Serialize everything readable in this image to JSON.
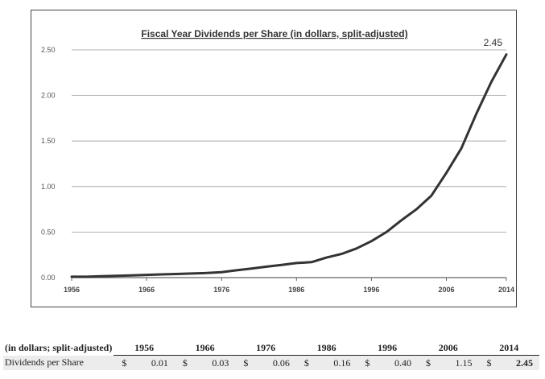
{
  "chart_data": {
    "type": "line",
    "title": "Fiscal Year Dividends per Share (in dollars, split-adjusted)",
    "xlabel": "",
    "ylabel": "",
    "xlim": [
      1956,
      2014
    ],
    "ylim": [
      0,
      2.5
    ],
    "x_ticks": [
      "1956",
      "1966",
      "1976",
      "1986",
      "1996",
      "2006",
      "2014"
    ],
    "y_ticks": [
      "0.00",
      "0.50",
      "1.00",
      "1.50",
      "2.00",
      "2.50"
    ],
    "grid": true,
    "line_color": "#333333",
    "annotation": "2.45",
    "series": [
      {
        "x": [
          1956,
          1958,
          1960,
          1962,
          1964,
          1966,
          1968,
          1970,
          1972,
          1974,
          1976,
          1978,
          1980,
          1982,
          1984,
          1986,
          1988,
          1990,
          1992,
          1994,
          1996,
          1998,
          2000,
          2002,
          2004,
          2006,
          2008,
          2010,
          2012,
          2014
        ],
        "values": [
          0.01,
          0.01,
          0.015,
          0.02,
          0.025,
          0.03,
          0.035,
          0.04,
          0.045,
          0.05,
          0.06,
          0.08,
          0.1,
          0.12,
          0.14,
          0.16,
          0.17,
          0.22,
          0.26,
          0.32,
          0.4,
          0.5,
          0.63,
          0.75,
          0.9,
          1.15,
          1.42,
          1.8,
          2.15,
          2.45
        ]
      }
    ]
  },
  "table": {
    "header_label": "(in dollars; split-adjusted)",
    "years": [
      "1956",
      "1966",
      "1976",
      "1986",
      "1996",
      "2006",
      "2014"
    ],
    "row_label": "Dividends per Share",
    "currency": "$",
    "values": [
      "0.01",
      "0.03",
      "0.06",
      "0.16",
      "0.40",
      "1.15",
      "2.45"
    ]
  }
}
